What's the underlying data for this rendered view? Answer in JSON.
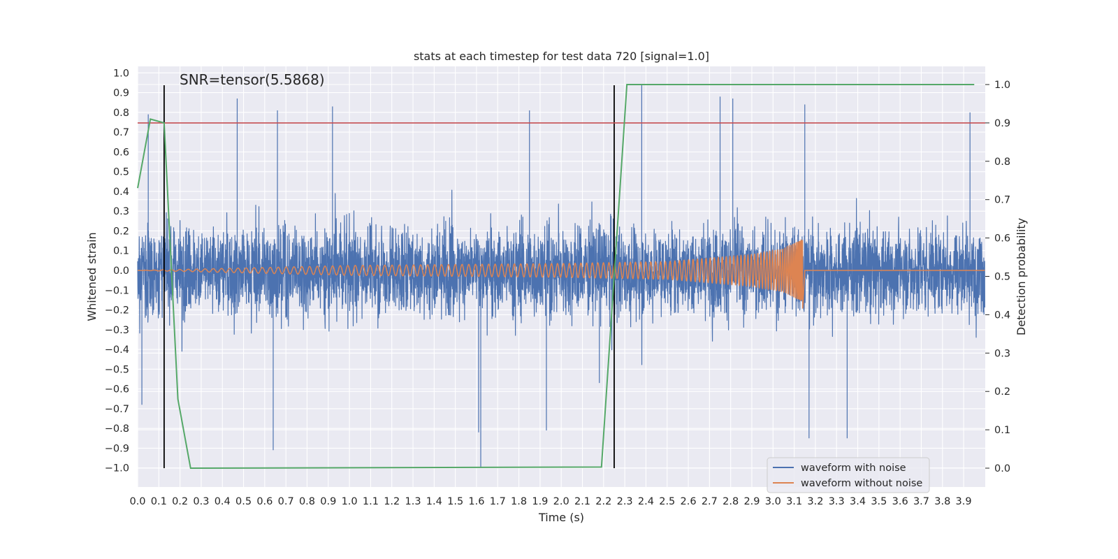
{
  "chart_data": {
    "type": "line",
    "title": "stats at each timestep for test data 720 [signal=1.0]",
    "xlabel": "Time (s)",
    "ylabel": "Whitened strain",
    "ylabel_right": "Detection probability",
    "xlim": [
      0.0,
      4.0
    ],
    "ylim": [
      -1.1,
      1.1
    ],
    "ylim_right": [
      -0.05,
      1.05
    ],
    "x_ticks": [
      "0.0",
      "0.1",
      "0.2",
      "0.3",
      "0.4",
      "0.5",
      "0.6",
      "0.7",
      "0.8",
      "0.9",
      "1.0",
      "1.1",
      "1.2",
      "1.3",
      "1.4",
      "1.5",
      "1.6",
      "1.7",
      "1.8",
      "1.9",
      "2.0",
      "2.1",
      "2.2",
      "2.3",
      "2.4",
      "2.5",
      "2.6",
      "2.7",
      "2.8",
      "2.9",
      "3.0",
      "3.1",
      "3.2",
      "3.3",
      "3.4",
      "3.5",
      "3.6",
      "3.7",
      "3.8",
      "3.9"
    ],
    "y_ticks": [
      "1.0",
      "0.9",
      "0.8",
      "0.7",
      "0.6",
      "0.5",
      "0.4",
      "0.3",
      "0.2",
      "0.1",
      "0.0",
      "−0.1",
      "−0.2",
      "−0.3",
      "−0.4",
      "−0.5",
      "−0.6",
      "−0.7",
      "−0.8",
      "−0.9",
      "−1.0"
    ],
    "y_ticks_right": [
      "1.0",
      "0.9",
      "0.8",
      "0.7",
      "0.6",
      "0.5",
      "0.4",
      "0.3",
      "0.2",
      "0.1",
      "0.0"
    ],
    "annotation": "SNR=tensor(5.5868)",
    "grid": true,
    "legend_position": "lower-right",
    "legend": [
      "waveform with noise",
      "waveform without noise"
    ],
    "threshold": {
      "axis": "right",
      "value": 0.9,
      "color": "#c44e52"
    },
    "vlines": [
      {
        "x": 0.125,
        "ymin": -1.0,
        "ymax": 0.94
      },
      {
        "x": 2.25,
        "ymin": -1.0,
        "ymax": 0.94
      }
    ],
    "series": [
      {
        "name": "waveform with noise",
        "color": "#4c72b0",
        "kind": "noise",
        "notes": "dense whitened noise filling roughly ±0.5, spikes reaching about ±0.9, minimum −1.0 near t=1.62",
        "spikes": [
          {
            "x": 0.05,
            "y": 0.79
          },
          {
            "x": 0.02,
            "y": -0.68
          },
          {
            "x": 0.47,
            "y": 0.87
          },
          {
            "x": 0.66,
            "y": 0.81
          },
          {
            "x": 0.64,
            "y": -0.91
          },
          {
            "x": 0.92,
            "y": 0.83
          },
          {
            "x": 1.62,
            "y": -1.0
          },
          {
            "x": 1.61,
            "y": -0.82
          },
          {
            "x": 1.85,
            "y": 0.81
          },
          {
            "x": 1.93,
            "y": -0.81
          },
          {
            "x": 2.38,
            "y": 0.94
          },
          {
            "x": 2.75,
            "y": 0.88
          },
          {
            "x": 2.81,
            "y": 0.87
          },
          {
            "x": 3.15,
            "y": 0.84
          },
          {
            "x": 3.17,
            "y": -0.85
          },
          {
            "x": 3.35,
            "y": -0.85
          },
          {
            "x": 3.93,
            "y": 0.8
          },
          {
            "x": 2.18,
            "y": -0.57
          }
        ],
        "amplitude": 0.5
      },
      {
        "name": "waveform without noise",
        "color": "#dd8452",
        "kind": "chirp",
        "notes": "inspiral chirp growing in amplitude and frequency, merger near t=3.14, flat after",
        "points": [
          [
            0.0,
            0.0
          ],
          [
            1.0,
            0.025
          ],
          [
            2.0,
            0.035
          ],
          [
            2.5,
            0.045
          ],
          [
            2.9,
            0.08
          ],
          [
            3.05,
            0.11
          ],
          [
            3.14,
            0.16
          ]
        ],
        "merger_time": 3.14
      },
      {
        "name": "detection probability",
        "color": "#55a868",
        "axis": "right",
        "x": [
          0.0,
          0.06,
          0.125,
          0.19,
          0.25,
          2.19,
          2.31,
          3.95
        ],
        "y": [
          0.73,
          0.91,
          0.9,
          0.18,
          0.0,
          0.003,
          1.0,
          1.0
        ]
      }
    ]
  }
}
